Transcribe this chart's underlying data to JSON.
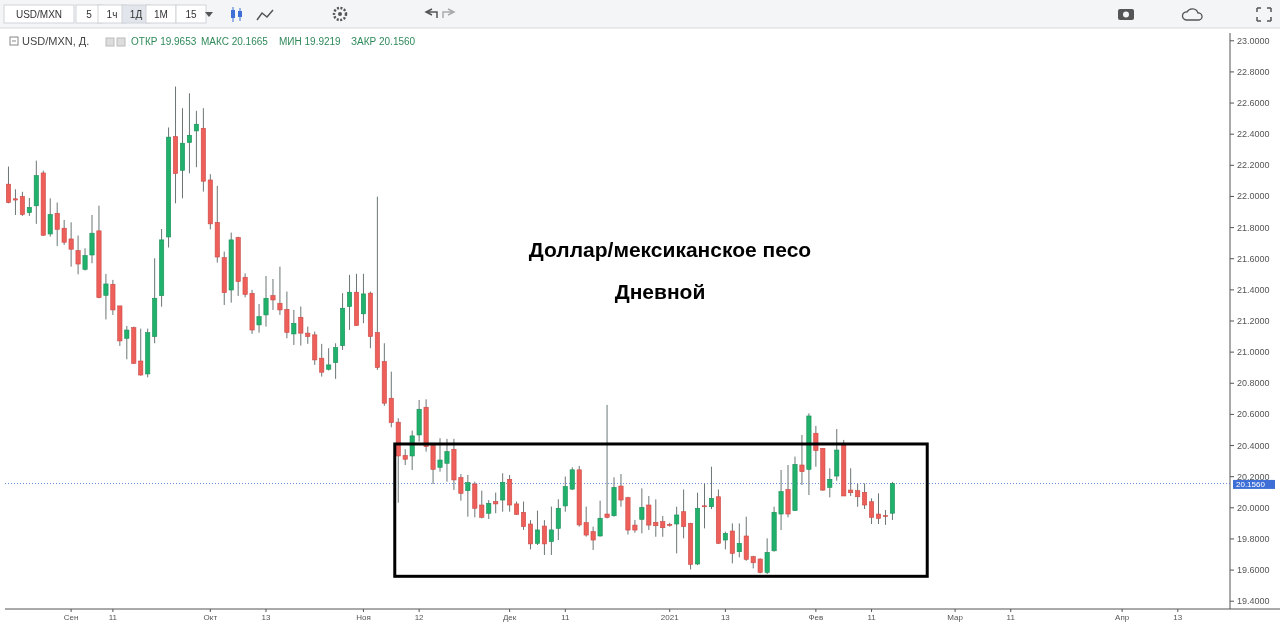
{
  "chart_data": {
    "type": "candlestick",
    "title": "Доллар/мексиканское песо",
    "subtitle": "Дневной",
    "annotations": [
      "USD/MXN",
      "5",
      "1ч",
      "1Д",
      "1М",
      "15",
      "USD/MXN, Д.",
      "ОТКР 19.9653",
      "МАКС 20.1665",
      "МИН 19.9219",
      "ЗАКР 20.1560"
    ],
    "ohlc": [
      [
        22.079,
        22.192,
        21.956,
        21.961
      ],
      [
        21.985,
        22.046,
        21.881,
        21.977
      ],
      [
        22.0,
        22.03,
        21.875,
        21.884
      ],
      [
        21.896,
        21.99,
        21.875,
        21.93
      ],
      [
        21.94,
        22.23,
        21.824,
        22.134
      ],
      [
        22.151,
        22.166,
        21.746,
        21.751
      ],
      [
        21.759,
        21.988,
        21.742,
        21.884
      ],
      [
        21.892,
        21.961,
        21.682,
        21.789
      ],
      [
        21.796,
        21.849,
        21.689,
        21.706
      ],
      [
        21.727,
        21.834,
        21.549,
        21.661
      ],
      [
        21.652,
        21.749,
        21.5,
        21.566
      ],
      [
        21.532,
        21.667,
        21.524,
        21.62
      ],
      [
        21.624,
        21.881,
        21.571,
        21.764
      ],
      [
        21.779,
        21.941,
        21.346,
        21.35
      ],
      [
        21.365,
        21.502,
        21.21,
        21.438
      ],
      [
        21.436,
        21.464,
        21.239,
        21.271
      ],
      [
        21.297,
        21.297,
        21.04,
        21.072
      ],
      [
        21.089,
        21.168,
        20.954,
        21.142
      ],
      [
        21.157,
        21.164,
        20.924,
        20.928
      ],
      [
        20.943,
        21.151,
        20.849,
        20.853
      ],
      [
        20.86,
        21.151,
        20.838,
        21.125
      ],
      [
        21.1,
        21.603,
        21.057,
        21.346
      ],
      [
        21.363,
        21.791,
        21.292,
        21.721
      ],
      [
        21.74,
        22.443,
        21.672,
        22.381
      ],
      [
        22.385,
        22.706,
        21.956,
        22.147
      ],
      [
        22.168,
        22.567,
        21.988,
        22.342
      ],
      [
        22.346,
        22.663,
        22.149,
        22.393
      ],
      [
        22.421,
        22.55,
        22.188,
        22.464
      ],
      [
        22.438,
        22.567,
        22.031,
        22.098
      ],
      [
        22.106,
        22.143,
        21.789,
        21.824
      ],
      [
        21.834,
        22.068,
        21.575,
        21.611
      ],
      [
        21.607,
        21.646,
        21.303,
        21.382
      ],
      [
        21.399,
        21.768,
        21.318,
        21.721
      ],
      [
        21.736,
        21.742,
        21.361,
        21.453
      ],
      [
        21.481,
        21.506,
        21.352,
        21.371
      ],
      [
        21.378,
        21.4,
        21.117,
        21.142
      ],
      [
        21.175,
        21.309,
        21.125,
        21.228
      ],
      [
        21.239,
        21.489,
        21.164,
        21.346
      ],
      [
        21.363,
        21.47,
        21.271,
        21.335
      ],
      [
        21.314,
        21.549,
        21.239,
        21.271
      ],
      [
        21.275,
        21.389,
        21.089,
        21.127
      ],
      [
        21.117,
        21.271,
        21.046,
        21.185
      ],
      [
        21.224,
        21.293,
        21.042,
        21.122
      ],
      [
        21.122,
        21.164,
        21.053,
        21.1
      ],
      [
        21.111,
        21.132,
        20.918,
        20.95
      ],
      [
        20.961,
        21.053,
        20.843,
        20.871
      ],
      [
        20.89,
        21.025,
        20.882,
        20.918
      ],
      [
        20.933,
        21.057,
        20.828,
        21.029
      ],
      [
        21.042,
        21.379,
        21.014,
        21.282
      ],
      [
        21.293,
        21.496,
        21.143,
        21.385
      ],
      [
        21.385,
        21.503,
        21.169,
        21.171
      ],
      [
        21.246,
        21.503,
        21.186,
        21.374
      ],
      [
        21.379,
        21.389,
        21.025,
        21.1
      ],
      [
        21.126,
        21.999,
        20.886,
        20.901
      ],
      [
        20.94,
        21.057,
        20.655,
        20.672
      ],
      [
        20.704,
        20.875,
        20.517,
        20.547
      ],
      [
        20.55,
        20.575,
        20.033,
        20.333
      ],
      [
        20.336,
        20.376,
        20.275,
        20.312
      ],
      [
        20.333,
        20.496,
        20.243,
        20.462
      ],
      [
        20.468,
        20.693,
        20.425,
        20.633
      ],
      [
        20.646,
        20.697,
        20.361,
        20.393
      ],
      [
        20.4,
        20.414,
        20.153,
        20.247
      ],
      [
        20.26,
        20.447,
        20.232,
        20.307
      ],
      [
        20.286,
        20.443,
        20.168,
        20.361
      ],
      [
        20.376,
        20.443,
        20.115,
        20.179
      ],
      [
        20.194,
        20.217,
        20.046,
        20.093
      ],
      [
        20.11,
        20.211,
        19.943,
        20.162
      ],
      [
        20.153,
        20.168,
        19.939,
        19.997
      ],
      [
        20.018,
        20.11,
        19.932,
        19.939
      ],
      [
        19.965,
        20.05,
        19.928,
        20.029
      ],
      [
        20.04,
        20.098,
        19.965,
        20.025
      ],
      [
        20.05,
        20.222,
        19.975,
        20.164
      ],
      [
        20.183,
        20.211,
        19.975,
        20.018
      ],
      [
        20.025,
        20.04,
        19.954,
        19.958
      ],
      [
        19.971,
        20.04,
        19.858,
        19.879
      ],
      [
        19.896,
        19.921,
        19.733,
        19.768
      ],
      [
        19.772,
        19.982,
        19.761,
        19.858
      ],
      [
        19.883,
        19.921,
        19.697,
        19.768
      ],
      [
        19.783,
        20.008,
        19.697,
        19.858
      ],
      [
        19.868,
        20.055,
        19.793,
        19.997
      ],
      [
        20.012,
        20.201,
        19.975,
        20.137
      ],
      [
        20.12,
        20.26,
        20.115,
        20.244
      ],
      [
        20.244,
        20.269,
        19.879,
        19.89
      ],
      [
        19.905,
        20.008,
        19.815,
        19.825
      ],
      [
        19.847,
        19.879,
        19.729,
        19.793
      ],
      [
        19.819,
        20.046,
        19.815,
        19.933
      ],
      [
        19.96,
        20.661,
        19.932,
        19.939
      ],
      [
        19.949,
        20.196,
        19.943,
        20.131
      ],
      [
        20.14,
        20.217,
        20.007,
        20.05
      ],
      [
        20.065,
        20.071,
        19.829,
        19.857
      ],
      [
        19.889,
        19.922,
        19.84,
        19.857
      ],
      [
        19.926,
        20.125,
        19.836,
        20.003
      ],
      [
        20.018,
        20.076,
        19.857,
        19.889
      ],
      [
        19.907,
        20.054,
        19.814,
        19.885
      ],
      [
        19.911,
        19.947,
        19.814,
        19.872
      ],
      [
        19.894,
        19.904,
        19.879,
        19.887
      ],
      [
        19.896,
        20.007,
        19.707,
        19.954
      ],
      [
        19.975,
        20.118,
        19.804,
        19.879
      ],
      [
        19.9,
        19.904,
        19.604,
        19.637
      ],
      [
        19.639,
        20.097,
        19.632,
        19.997
      ],
      [
        20.013,
        20.157,
        19.868,
        20.009
      ],
      [
        20.007,
        20.264,
        19.992,
        20.061
      ],
      [
        20.071,
        20.118,
        19.767,
        19.772
      ],
      [
        19.793,
        19.847,
        19.733,
        19.836
      ],
      [
        19.851,
        19.9,
        19.643,
        19.707
      ],
      [
        19.718,
        19.9,
        19.682,
        19.772
      ],
      [
        19.819,
        19.943,
        19.66,
        19.669
      ],
      [
        19.686,
        19.692,
        19.611,
        19.647
      ],
      [
        19.671,
        19.675,
        19.579,
        19.585
      ],
      [
        19.585,
        19.804,
        19.574,
        19.714
      ],
      [
        19.724,
        20.007,
        19.718,
        19.971
      ],
      [
        19.96,
        20.243,
        19.857,
        20.104
      ],
      [
        20.118,
        20.275,
        19.939,
        19.96
      ],
      [
        19.982,
        20.329,
        19.982,
        20.279
      ],
      [
        20.275,
        20.468,
        20.146,
        20.232
      ],
      [
        20.247,
        20.607,
        20.082,
        20.59
      ],
      [
        20.479,
        20.526,
        20.264,
        20.367
      ],
      [
        20.382,
        20.382,
        20.108,
        20.114
      ],
      [
        20.131,
        20.254,
        20.067,
        20.183
      ],
      [
        20.204,
        20.506,
        20.174,
        20.371
      ],
      [
        20.404,
        20.436,
        20.076,
        20.076
      ],
      [
        20.114,
        20.254,
        20.076,
        20.097
      ],
      [
        20.11,
        20.157,
        20.007,
        20.071
      ],
      [
        20.099,
        20.157,
        19.992,
        20.018
      ],
      [
        20.039,
        20.061,
        19.896,
        19.939
      ],
      [
        19.96,
        20.093,
        19.896,
        19.932
      ],
      [
        19.95,
        19.986,
        19.89,
        19.946
      ],
      [
        19.9653,
        20.1665,
        19.9219,
        20.156
      ],
      null,
      null,
      null,
      null,
      null,
      null,
      null,
      null,
      null,
      null,
      null,
      null,
      null,
      null,
      null,
      null,
      null,
      null,
      null,
      null,
      null,
      null,
      null,
      null,
      null,
      null,
      null,
      null,
      null,
      null,
      null,
      null,
      null,
      null,
      null,
      null,
      null,
      null,
      null,
      null,
      null,
      null,
      null,
      null,
      null,
      null,
      null,
      null
    ],
    "categories": [
      null,
      null,
      null,
      null,
      null,
      null,
      null,
      null,
      null,
      "Сен",
      null,
      null,
      null,
      null,
      null,
      "11",
      null,
      null,
      null,
      null,
      null,
      null,
      null,
      null,
      null,
      null,
      null,
      null,
      null,
      "Окт",
      null,
      null,
      null,
      null,
      null,
      null,
      null,
      "13",
      null,
      null,
      null,
      null,
      null,
      null,
      null,
      null,
      null,
      null,
      null,
      null,
      null,
      "Ноя",
      null,
      null,
      null,
      null,
      null,
      null,
      null,
      "12",
      null,
      null,
      null,
      null,
      null,
      null,
      null,
      null,
      null,
      null,
      null,
      null,
      "Дек",
      null,
      null,
      null,
      null,
      null,
      null,
      null,
      "11",
      null,
      null,
      null,
      null,
      null,
      null,
      null,
      null,
      null,
      null,
      null,
      null,
      null,
      null,
      "2021",
      null,
      null,
      null,
      null,
      null,
      null,
      null,
      "13",
      null,
      null,
      null,
      null,
      null,
      null,
      null,
      null,
      null,
      null,
      null,
      null,
      "Фев",
      null,
      null,
      null,
      null,
      null,
      null,
      null,
      "11",
      null,
      null,
      null,
      null,
      null,
      null,
      null,
      null,
      null,
      null,
      null,
      "Мар",
      null,
      null,
      null,
      null,
      null,
      null,
      null,
      "11",
      null,
      null,
      null,
      null,
      null,
      null,
      null,
      null,
      null,
      null,
      null,
      null,
      null,
      null,
      null,
      "Апр",
      null,
      null,
      null,
      null,
      null,
      null,
      null,
      "13",
      null,
      null,
      null,
      null,
      null,
      null,
      null
    ],
    "ylim": [
      19.35,
      23.05
    ],
    "yticks": [
      {
        "value": 19.4,
        "label": "19.4000"
      },
      {
        "value": 19.6,
        "label": "19.6000"
      },
      {
        "value": 19.8,
        "label": "19.8000"
      },
      {
        "value": 20.0,
        "label": "20.0000"
      },
      {
        "value": 20.2,
        "label": "20.2000"
      },
      {
        "value": 20.4,
        "label": "20.4000"
      },
      {
        "value": 20.6,
        "label": "20.6000"
      },
      {
        "value": 20.8,
        "label": "20.8000"
      },
      {
        "value": 21.0,
        "label": "21.0000"
      },
      {
        "value": 21.2,
        "label": "21.2000"
      },
      {
        "value": 21.4,
        "label": "21.4000"
      },
      {
        "value": 21.6,
        "label": "21.6000"
      },
      {
        "value": 21.8,
        "label": "21.8000"
      },
      {
        "value": 22.0,
        "label": "22.0000"
      },
      {
        "value": 22.2,
        "label": "22.2000"
      },
      {
        "value": 22.4,
        "label": "22.4000"
      },
      {
        "value": 22.6,
        "label": "22.6000"
      },
      {
        "value": 22.8,
        "label": "22.8000"
      },
      {
        "value": 23.0,
        "label": "23.0000"
      }
    ],
    "ref_lines": [
      {
        "axis": "y",
        "value": 20.156,
        "label": "20.1560",
        "color": "#3d6fd6",
        "line_style": "dotted"
      }
    ]
  }
}
